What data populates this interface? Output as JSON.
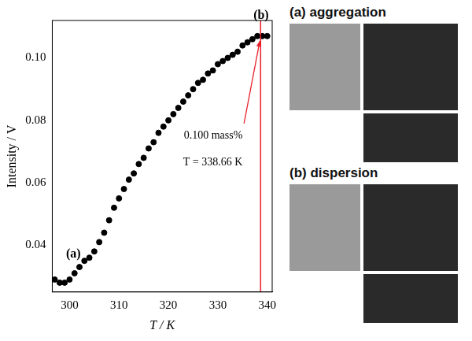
{
  "chart_data": {
    "type": "scatter",
    "marker": "circle",
    "color": "#000000",
    "x_label": "T / K",
    "y_label": "Intensity / V",
    "x": [
      297,
      298,
      299,
      300,
      301,
      302,
      303,
      304,
      305,
      306,
      307,
      308,
      309,
      310,
      311,
      312,
      313,
      314,
      315,
      316,
      317,
      318,
      319,
      320,
      321,
      322,
      323,
      324,
      325,
      326,
      327,
      328,
      329,
      330,
      331,
      332,
      333,
      334,
      335,
      336,
      337,
      338,
      339,
      340
    ],
    "values": [
      0.029,
      0.028,
      0.028,
      0.029,
      0.031,
      0.033,
      0.035,
      0.036,
      0.038,
      0.041,
      0.044,
      0.048,
      0.052,
      0.055,
      0.058,
      0.061,
      0.063,
      0.066,
      0.068,
      0.071,
      0.073,
      0.076,
      0.078,
      0.08,
      0.082,
      0.084,
      0.086,
      0.088,
      0.09,
      0.092,
      0.093,
      0.095,
      0.096,
      0.098,
      0.099,
      0.1,
      0.101,
      0.102,
      0.104,
      0.105,
      0.106,
      0.107,
      0.107,
      0.107
    ],
    "xlim": [
      296.5,
      341
    ],
    "xticks": [
      300,
      310,
      320,
      330,
      340
    ],
    "ylim": [
      0.025,
      0.112
    ],
    "yticks": [
      0.04,
      0.06,
      0.08,
      {
        "value": 0.1,
        "label": "0.10"
      }
    ],
    "grid": false,
    "vline": {
      "x": 338.66,
      "color": "#e8202a"
    },
    "annotations": [
      {
        "text": "(a)",
        "x": 299.3,
        "y": 0.037
      },
      {
        "text": "(b)",
        "x": 337.2,
        "y": 0.1135
      },
      {
        "text": "0.100 mass%",
        "x": 335,
        "y": 0.075
      },
      {
        "text": "T = 338.66 K",
        "x": 335,
        "y": 0.0665
      }
    ],
    "arrow": {
      "from": [
        335.3,
        0.079
      ],
      "to": [
        338.5,
        0.1055
      ],
      "color": "#e8202a"
    }
  },
  "photo_panels": [
    "(a) aggregation",
    "(b) dispersion"
  ]
}
